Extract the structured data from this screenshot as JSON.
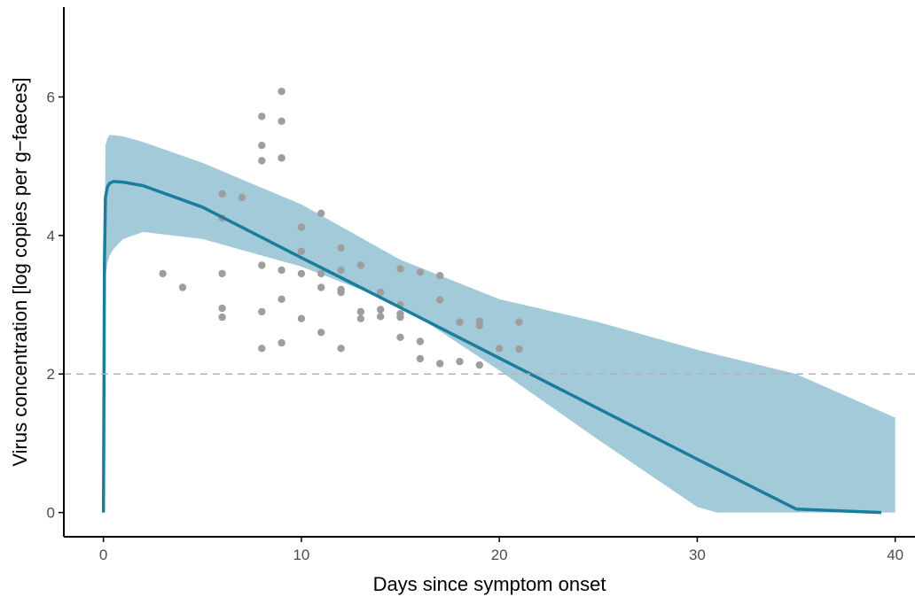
{
  "chart_data": {
    "type": "scatter",
    "xlabel": "Days since symptom onset",
    "ylabel": "Virus concentration [log copies per g−faeces]",
    "xlim": [
      -2,
      41
    ],
    "ylim": [
      -0.35,
      7.4
    ],
    "x_ticks": [
      0,
      10,
      20,
      30,
      40
    ],
    "y_ticks": [
      0,
      2,
      4,
      6
    ],
    "grid": false,
    "threshold": 2,
    "colors": {
      "points": "#9e9e9e",
      "fit_line": "#1a7d9c",
      "ribbon": "#a3cad9",
      "threshold": "#b3b3b3",
      "axis": "#000000"
    },
    "series": [
      {
        "type": "scatter",
        "x": [
          3,
          4,
          6,
          6,
          6,
          6,
          6,
          7,
          8,
          8,
          8,
          8,
          8,
          8,
          9,
          9,
          9,
          9,
          9,
          9,
          9,
          10,
          10,
          10,
          10,
          11,
          11,
          11,
          11,
          12,
          12,
          12,
          12,
          12,
          13,
          13,
          13,
          14,
          14,
          14,
          15,
          15,
          15,
          15,
          15,
          16,
          16,
          16,
          17,
          17,
          17,
          18,
          18,
          19,
          19,
          19,
          20,
          21,
          21
        ],
        "y": [
          3.45,
          3.25,
          4.6,
          4.25,
          3.45,
          2.95,
          2.82,
          4.55,
          5.72,
          5.3,
          5.08,
          3.57,
          2.9,
          2.37,
          6.08,
          5.65,
          5.12,
          3.5,
          3.08,
          2.45,
          5.12,
          4.12,
          3.45,
          2.8,
          3.77,
          3.45,
          3.25,
          2.6,
          4.32,
          3.82,
          3.5,
          3.18,
          2.37,
          3.22,
          2.9,
          2.8,
          3.57,
          2.93,
          2.83,
          3.18,
          2.87,
          2.82,
          2.53,
          3.0,
          3.52,
          2.47,
          3.47,
          2.22,
          2.15,
          3.42,
          3.07,
          2.75,
          2.18,
          2.13,
          2.7,
          2.76,
          2.37,
          2.36,
          2.75
        ]
      },
      {
        "type": "line",
        "x": [
          0,
          0.05,
          0.1,
          0.2,
          0.3,
          0.5,
          1,
          2,
          5,
          10,
          15,
          20,
          25,
          30,
          35,
          39.3
        ],
        "y": [
          0,
          3.6,
          4.55,
          4.7,
          4.75,
          4.78,
          4.77,
          4.72,
          4.41,
          3.68,
          2.96,
          2.23,
          1.5,
          0.77,
          0.05,
          0
        ]
      },
      {
        "type": "area",
        "x": [
          0,
          0.1,
          0.2,
          0.3,
          0.5,
          1,
          2,
          5,
          10,
          15,
          20,
          25,
          30,
          31,
          35,
          40
        ],
        "lower": [
          0,
          3.4,
          3.6,
          3.7,
          3.8,
          3.95,
          4.05,
          3.95,
          3.55,
          3.0,
          2.05,
          1.05,
          0.08,
          0,
          0,
          0
        ],
        "upper": [
          0,
          5.3,
          5.4,
          5.45,
          5.45,
          5.43,
          5.35,
          5.05,
          4.45,
          3.65,
          3.08,
          2.75,
          2.35,
          2.28,
          2.0,
          1.37
        ]
      }
    ]
  }
}
